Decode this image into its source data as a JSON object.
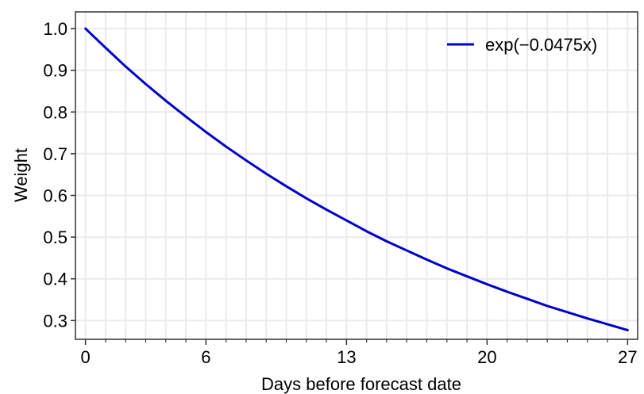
{
  "chart_data": {
    "type": "line",
    "xlabel": "Days before forecast date",
    "ylabel": "Weight",
    "xlim": [
      -0.5,
      27.5
    ],
    "ylim": [
      0.255,
      1.04
    ],
    "x_ticks": [
      0,
      6,
      13,
      20,
      27
    ],
    "x_minor_ticks": [
      1,
      2,
      3,
      4,
      5,
      7,
      8,
      9,
      10,
      11,
      12,
      14,
      15,
      16,
      17,
      18,
      19,
      21,
      22,
      23,
      24,
      25,
      26
    ],
    "y_ticks": [
      0.3,
      0.4,
      0.5,
      0.6,
      0.7,
      0.8,
      0.9,
      1.0
    ],
    "y_tick_labels": [
      "0.3",
      "0.4",
      "0.5",
      "0.6",
      "0.7",
      "0.8",
      "0.9",
      "1.0"
    ],
    "grid": true,
    "legend_position": "top-right",
    "series": [
      {
        "name": "exp(−0.0475x)",
        "color": "#0000cc",
        "x": [
          0,
          1,
          2,
          3,
          4,
          5,
          6,
          7,
          8,
          9,
          10,
          11,
          12,
          13,
          14,
          15,
          16,
          17,
          18,
          19,
          20,
          21,
          22,
          23,
          24,
          25,
          26,
          27
        ],
        "y": [
          1.0,
          0.954,
          0.909,
          0.867,
          0.827,
          0.789,
          0.752,
          0.717,
          0.684,
          0.652,
          0.622,
          0.593,
          0.566,
          0.54,
          0.514,
          0.49,
          0.468,
          0.446,
          0.425,
          0.406,
          0.387,
          0.369,
          0.352,
          0.335,
          0.32,
          0.305,
          0.291,
          0.277
        ]
      }
    ]
  }
}
